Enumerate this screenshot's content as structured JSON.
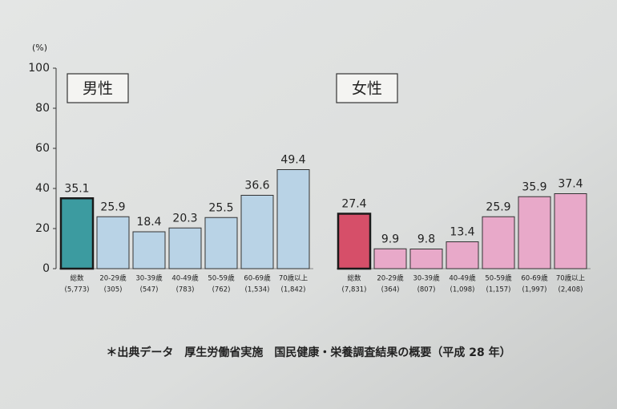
{
  "chart_data": [
    {
      "type": "bar",
      "title": "男性",
      "y_unit": "(%)",
      "categories": [
        "総数",
        "20-29歳",
        "30-39歳",
        "40-49歳",
        "50-59歳",
        "60-69歳",
        "70歳以上"
      ],
      "counts": [
        "(5,773)",
        "(305)",
        "(547)",
        "(783)",
        "(762)",
        "(1,534)",
        "(1,842)"
      ],
      "values": [
        35.1,
        25.9,
        18.4,
        20.3,
        25.5,
        36.6,
        49.4
      ],
      "color": "#b9d3e6",
      "highlight_color": "#3c9ba0",
      "highlight_index": 0,
      "ylim": [
        0,
        100
      ],
      "yticks": [
        0,
        20,
        40,
        60,
        80,
        100
      ]
    },
    {
      "type": "bar",
      "title": "女性",
      "categories": [
        "総数",
        "20-29歳",
        "30-39歳",
        "40-49歳",
        "50-59歳",
        "60-69歳",
        "70歳以上"
      ],
      "counts": [
        "(7,831)",
        "(364)",
        "(807)",
        "(1,098)",
        "(1,157)",
        "(1,997)",
        "(2,408)"
      ],
      "values": [
        27.4,
        9.9,
        9.8,
        13.4,
        25.9,
        35.9,
        37.4
      ],
      "color": "#e8a9c9",
      "highlight_color": "#d64f69",
      "highlight_index": 0,
      "ylim": [
        0,
        100
      ]
    }
  ],
  "footnote": "＊出典データ　厚生労働省実施　国民健康・栄養調査結果の概要（平成 28 年）"
}
